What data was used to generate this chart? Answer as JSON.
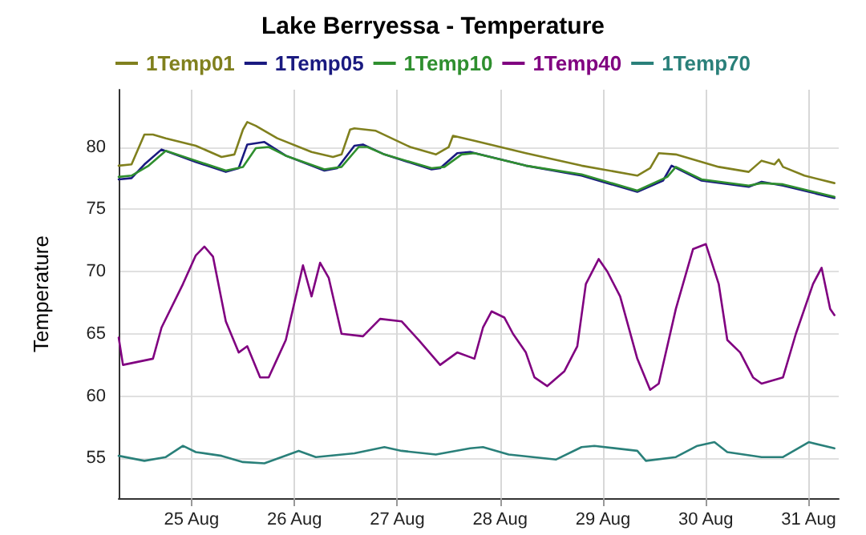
{
  "chart_data": {
    "type": "line",
    "title": "Lake Berryessa - Temperature",
    "ylabel": "Temperature",
    "xlim": [
      "--08-24T07:00",
      "--08-31T07:00"
    ],
    "xticks": [
      {
        "value": "--08-25",
        "label": "25 Aug"
      },
      {
        "value": "--08-26",
        "label": "26 Aug"
      },
      {
        "value": "--08-27",
        "label": "27 Aug"
      },
      {
        "value": "--08-28",
        "label": "28 Aug"
      },
      {
        "value": "--08-29",
        "label": "29 Aug"
      },
      {
        "value": "--08-30",
        "label": "30 Aug"
      },
      {
        "value": "--08-31",
        "label": "31 Aug"
      }
    ],
    "ylim": [
      51.8,
      84.6
    ],
    "yticks": [
      55,
      60,
      65,
      70,
      75,
      80
    ],
    "grid": true,
    "legend": "top",
    "marker": "none",
    "line_style": "solid",
    "series": [
      {
        "name": "1Temp01",
        "color": "#80801e",
        "x": [
          "--08-24T07:00",
          "--08-24T10:00",
          "--08-24T13:00",
          "--08-24T15:00",
          "--08-24T18:00",
          "--08-25T01:00",
          "--08-25T07:00",
          "--08-25T10:00",
          "--08-25T12:00",
          "--08-25T13:00",
          "--08-25T15:00",
          "--08-25T20:00",
          "--08-26T04:00",
          "--08-26T09:00",
          "--08-26T11:00",
          "--08-26T13:00",
          "--08-26T14:00",
          "--08-26T19:00",
          "--08-27T03:00",
          "--08-27T09:00",
          "--08-27T12:00",
          "--08-27T13:00",
          "--08-27T18:00",
          "--08-28T06:00",
          "--08-28T19:00",
          "--08-29T08:00",
          "--08-29T11:00",
          "--08-29T13:00",
          "--08-29T17:00",
          "--08-30T03:00",
          "--08-30T10:00",
          "--08-30T13:00",
          "--08-30T16:00",
          "--08-30T17:00",
          "--08-30T18:00",
          "--08-30T23:00",
          "--08-31T06:00"
        ],
        "values": [
          78.5,
          78.6,
          81.0,
          81.0,
          80.7,
          80.1,
          79.2,
          79.4,
          81.4,
          82.0,
          81.7,
          80.7,
          79.6,
          79.2,
          79.4,
          81.4,
          81.5,
          81.3,
          80.0,
          79.4,
          80.0,
          80.9,
          80.5,
          79.5,
          78.5,
          77.7,
          78.3,
          79.5,
          79.4,
          78.4,
          78.0,
          78.9,
          78.6,
          79.0,
          78.4,
          77.7,
          77.1
        ]
      },
      {
        "name": "1Temp05",
        "color": "#1a1a80",
        "x": [
          "--08-24T07:00",
          "--08-24T10:00",
          "--08-24T13:00",
          "--08-24T17:00",
          "--08-25T01:00",
          "--08-25T08:00",
          "--08-25T11:00",
          "--08-25T13:00",
          "--08-25T17:00",
          "--08-25T22:00",
          "--08-26T07:00",
          "--08-26T10:00",
          "--08-26T14:00",
          "--08-26T16:00",
          "--08-26T21:00",
          "--08-27T08:00",
          "--08-27T10:00",
          "--08-27T14:00",
          "--08-27T17:00",
          "--08-28T06:00",
          "--08-28T19:00",
          "--08-29T08:00",
          "--08-29T14:00",
          "--08-29T16:00",
          "--08-29T23:00",
          "--08-30T10:00",
          "--08-30T13:00",
          "--08-30T18:00",
          "--08-31T06:00"
        ],
        "values": [
          77.4,
          77.5,
          78.6,
          79.8,
          78.8,
          78.0,
          78.3,
          80.2,
          80.4,
          79.3,
          78.1,
          78.3,
          80.1,
          80.2,
          79.4,
          78.2,
          78.3,
          79.5,
          79.6,
          78.5,
          77.7,
          76.4,
          77.3,
          78.5,
          77.3,
          76.8,
          77.2,
          76.9,
          75.9
        ]
      },
      {
        "name": "1Temp10",
        "color": "#2f8f2f",
        "x": [
          "--08-24T07:00",
          "--08-24T10:00",
          "--08-24T14:00",
          "--08-24T18:00",
          "--08-25T01:00",
          "--08-25T08:00",
          "--08-25T12:00",
          "--08-25T15:00",
          "--08-25T18:00",
          "--08-25T22:00",
          "--08-26T07:00",
          "--08-26T11:00",
          "--08-26T15:00",
          "--08-26T17:00",
          "--08-26T21:00",
          "--08-27T08:00",
          "--08-27T11:00",
          "--08-27T15:00",
          "--08-27T18:00",
          "--08-28T06:00",
          "--08-28T19:00",
          "--08-29T08:00",
          "--08-29T15:00",
          "--08-29T17:00",
          "--08-29T23:00",
          "--08-30T10:00",
          "--08-30T13:00",
          "--08-30T18:00",
          "--08-31T06:00"
        ],
        "values": [
          77.6,
          77.7,
          78.5,
          79.7,
          78.9,
          78.1,
          78.4,
          79.9,
          80.0,
          79.3,
          78.2,
          78.4,
          80.0,
          80.0,
          79.4,
          78.3,
          78.4,
          79.4,
          79.5,
          78.5,
          77.8,
          76.5,
          77.6,
          78.4,
          77.4,
          76.9,
          77.1,
          77.0,
          76.0
        ]
      },
      {
        "name": "1Temp40",
        "color": "#800080",
        "x": [
          "--08-24T07:00",
          "--08-24T08:00",
          "--08-24T15:00",
          "--08-24T17:00",
          "--08-24T22:00",
          "--08-25T01:00",
          "--08-25T03:00",
          "--08-25T05:00",
          "--08-25T08:00",
          "--08-25T11:00",
          "--08-25T13:00",
          "--08-25T16:00",
          "--08-25T18:00",
          "--08-25T20:00",
          "--08-25T22:00",
          "--08-26T02:00",
          "--08-26T04:00",
          "--08-26T06:00",
          "--08-26T08:00",
          "--08-26T11:00",
          "--08-26T16:00",
          "--08-26T20:00",
          "--08-27T01:00",
          "--08-27T05:00",
          "--08-27T10:00",
          "--08-27T14:00",
          "--08-27T18:00",
          "--08-27T20:00",
          "--08-27T22:00",
          "--08-28T01:00",
          "--08-28T03:00",
          "--08-28T06:00",
          "--08-28T08:00",
          "--08-28T11:00",
          "--08-28T15:00",
          "--08-28T18:00",
          "--08-28T20:00",
          "--08-28T23:00",
          "--08-29T01:00",
          "--08-29T04:00",
          "--08-29T08:00",
          "--08-29T11:00",
          "--08-29T13:00",
          "--08-29T17:00",
          "--08-29T21:00",
          "--08-30T00:00",
          "--08-30T03:00",
          "--08-30T05:00",
          "--08-30T08:00",
          "--08-30T11:00",
          "--08-30T13:00",
          "--08-30T18:00",
          "--08-30T21:00",
          "--08-31T01:00",
          "--08-31T03:00",
          "--08-31T05:00",
          "--08-31T06:00"
        ],
        "values": [
          64.7,
          62.5,
          63,
          65.5,
          69,
          71.3,
          72,
          71.2,
          66,
          63.5,
          64,
          61.5,
          61.5,
          63,
          64.5,
          70.5,
          68,
          70.7,
          69.5,
          65,
          64.8,
          66.2,
          66,
          64.5,
          62.5,
          63.5,
          63,
          65.5,
          66.8,
          66.3,
          65,
          63.5,
          61.5,
          60.8,
          62,
          64,
          69,
          71,
          70,
          68,
          63,
          60.5,
          61,
          67,
          71.8,
          72.2,
          69,
          64.5,
          63.5,
          61.5,
          61,
          61.5,
          65,
          69,
          70.3,
          67,
          66.5
        ]
      },
      {
        "name": "1Temp70",
        "color": "#2a807a",
        "x": [
          "--08-24T07:00",
          "--08-24T13:00",
          "--08-24T18:00",
          "--08-24T22:00",
          "--08-25T01:00",
          "--08-25T07:00",
          "--08-25T12:00",
          "--08-25T17:00",
          "--08-25T21:00",
          "--08-26T01:00",
          "--08-26T05:00",
          "--08-26T14:00",
          "--08-26T21:00",
          "--08-27T01:00",
          "--08-27T09:00",
          "--08-27T17:00",
          "--08-27T20:00",
          "--08-28T02:00",
          "--08-28T13:00",
          "--08-28T19:00",
          "--08-28T22:00",
          "--08-29T08:00",
          "--08-29T10:00",
          "--08-29T17:00",
          "--08-29T22:00",
          "--08-30T02:00",
          "--08-30T05:00",
          "--08-30T13:00",
          "--08-30T18:00",
          "--08-31T00:00",
          "--08-31T06:00"
        ],
        "values": [
          55.2,
          54.8,
          55.1,
          56.0,
          55.5,
          55.2,
          54.7,
          54.6,
          55.1,
          55.6,
          55.1,
          55.4,
          55.9,
          55.6,
          55.3,
          55.8,
          55.9,
          55.3,
          54.9,
          55.9,
          56.0,
          55.6,
          54.8,
          55.1,
          56.0,
          56.3,
          55.5,
          55.1,
          55.1,
          56.3,
          55.8
        ]
      }
    ]
  }
}
